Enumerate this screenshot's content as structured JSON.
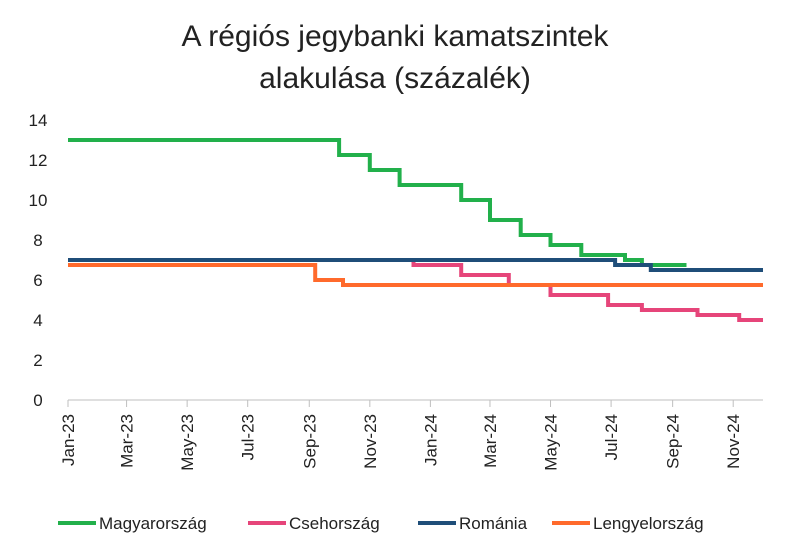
{
  "chart_data": {
    "type": "line",
    "title_lines": [
      "A régiós jegybanki kamatszintek",
      "alakulása (százalék)"
    ],
    "xlabel": "",
    "ylabel": "",
    "ylim": [
      0,
      14
    ],
    "y_ticks": [
      0,
      2,
      4,
      6,
      8,
      10,
      12,
      14
    ],
    "x_ticks": [
      "Jan-23",
      "Mar-23",
      "May-23",
      "Jul-23",
      "Sep-23",
      "Nov-23",
      "Jan-24",
      "Mar-24",
      "May-24",
      "Jul-24",
      "Sep-24",
      "Nov-24"
    ],
    "x_range": [
      "2023-01-01",
      "2024-12-01"
    ],
    "grid": false,
    "legend_position": "bottom",
    "series": [
      {
        "name": "Magyarország",
        "color": "#22B04B",
        "steps": [
          [
            "2023-01-01",
            13
          ],
          [
            "2023-10-01",
            12.25
          ],
          [
            "2023-11-01",
            11.5
          ],
          [
            "2023-12-01",
            10.75
          ],
          [
            "2024-02-01",
            10
          ],
          [
            "2024-03-01",
            9
          ],
          [
            "2024-04-01",
            8.25
          ],
          [
            "2024-05-01",
            7.75
          ],
          [
            "2024-06-01",
            7.25
          ],
          [
            "2024-07-15",
            7
          ],
          [
            "2024-08-01",
            6.75
          ],
          [
            "2024-09-15",
            6.75
          ]
        ],
        "end": "2024-09-15"
      },
      {
        "name": "Csehország",
        "color": "#E6457A",
        "steps": [
          [
            "2023-01-01",
            7
          ],
          [
            "2023-12-15",
            6.75
          ],
          [
            "2024-02-01",
            6.25
          ],
          [
            "2024-03-20",
            5.75
          ],
          [
            "2024-05-01",
            5.25
          ],
          [
            "2024-06-28",
            4.75
          ],
          [
            "2024-08-01",
            4.5
          ],
          [
            "2024-09-26",
            4.25
          ],
          [
            "2024-11-07",
            4
          ]
        ],
        "end": "2024-12-01"
      },
      {
        "name": "Románia",
        "color": "#1F4E79",
        "steps": [
          [
            "2023-01-01",
            7
          ],
          [
            "2024-07-05",
            6.75
          ],
          [
            "2024-08-10",
            6.5
          ]
        ],
        "end": "2024-12-01"
      },
      {
        "name": "Lengyelország",
        "color": "#FF6A2C",
        "steps": [
          [
            "2023-01-01",
            6.75
          ],
          [
            "2023-09-07",
            6
          ],
          [
            "2023-10-05",
            5.75
          ]
        ],
        "end": "2024-12-01"
      }
    ]
  }
}
